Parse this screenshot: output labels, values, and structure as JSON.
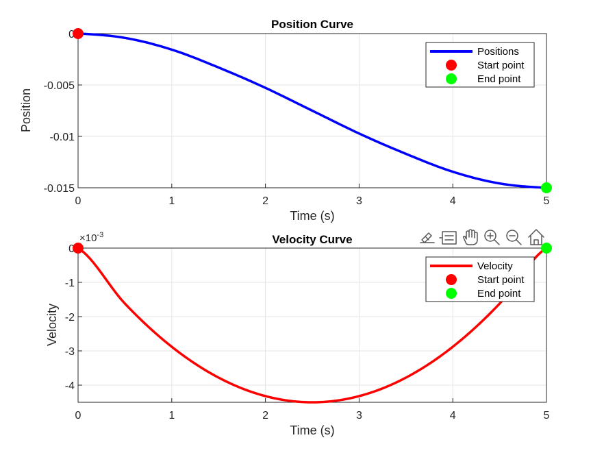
{
  "toolbar": {
    "icons": [
      "export-icon",
      "data-tips-icon",
      "pan-icon",
      "zoom-in-icon",
      "zoom-out-icon",
      "home-icon"
    ]
  },
  "colors": {
    "position_line": "#0000ff",
    "velocity_line": "#ff0000",
    "start_marker": "#ff0000",
    "end_marker": "#00ff00",
    "grid": "#e6e6e6",
    "axes": "#262626"
  },
  "chart_data": [
    {
      "type": "line",
      "title": "Position Curve",
      "xlabel": "Time (s)",
      "ylabel": "Position",
      "xlim": [
        0,
        5
      ],
      "ylim": [
        -0.015,
        0
      ],
      "xticks": [
        "0",
        "1",
        "2",
        "3",
        "4",
        "5"
      ],
      "yticks": [
        "0",
        "-0.005",
        "-0.01",
        "-0.015"
      ],
      "ytick_values": [
        0,
        -0.005,
        -0.01,
        -0.015
      ],
      "grid": true,
      "legend_placement": "top-right",
      "legend": [
        "Positions",
        "Start point",
        "End point"
      ],
      "series": [
        {
          "name": "Positions",
          "x": [
            0,
            0.5,
            1,
            1.5,
            2,
            2.5,
            3,
            3.5,
            4,
            4.5,
            5
          ],
          "y": [
            0,
            -0.00042,
            -0.00156,
            -0.0033,
            -0.00528,
            -0.0075,
            -0.00972,
            -0.0117,
            -0.01344,
            -0.01458,
            -0.015
          ]
        },
        {
          "name": "Start point",
          "x": [
            0
          ],
          "y": [
            0
          ]
        },
        {
          "name": "End point",
          "x": [
            5
          ],
          "y": [
            -0.015
          ]
        }
      ]
    },
    {
      "type": "line",
      "title": "Velocity Curve",
      "xlabel": "Time (s)",
      "ylabel": "Velocity",
      "y_multiplier": "×10-3",
      "xlim": [
        0,
        5
      ],
      "ylim": [
        -4.5,
        0
      ],
      "xticks": [
        "0",
        "1",
        "2",
        "3",
        "4",
        "5"
      ],
      "yticks": [
        "0",
        "-1",
        "-2",
        "-3",
        "-4"
      ],
      "ytick_values": [
        0,
        -1,
        -2,
        -3,
        -4
      ],
      "grid": true,
      "legend_placement": "top-right",
      "legend": [
        "Velocity",
        "Start point",
        "End point"
      ],
      "series": [
        {
          "name": "Velocity",
          "x": [
            0,
            0.5,
            1,
            1.5,
            2,
            2.5,
            3,
            3.5,
            4,
            4.5,
            5
          ],
          "y": [
            0,
            -1.62,
            -2.88,
            -3.78,
            -4.32,
            -4.5,
            -4.32,
            -3.78,
            -2.88,
            -1.62,
            0
          ]
        },
        {
          "name": "Start point",
          "x": [
            0
          ],
          "y": [
            0
          ]
        },
        {
          "name": "End point",
          "x": [
            5
          ],
          "y": [
            0
          ]
        }
      ]
    }
  ]
}
